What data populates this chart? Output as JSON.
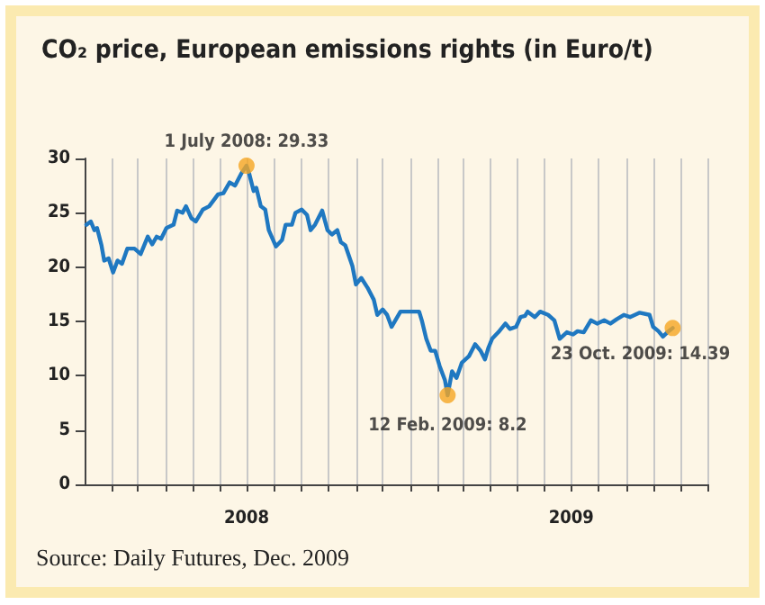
{
  "chart_data": {
    "type": "line",
    "title": "CO₂ price, European emissions rights (in Euro/t)",
    "series": [
      {
        "color": "#1f78c1",
        "x": [
          "2008-01-03",
          "2008-01-08",
          "2008-01-12",
          "2008-01-15",
          "2008-01-20",
          "2008-01-23",
          "2008-01-28",
          "2008-02-02",
          "2008-02-07",
          "2008-02-12",
          "2008-02-18",
          "2008-02-26",
          "2008-03-04",
          "2008-03-12",
          "2008-03-17",
          "2008-03-22",
          "2008-03-27",
          "2008-04-02",
          "2008-04-10",
          "2008-04-14",
          "2008-04-20",
          "2008-04-24",
          "2008-04-30",
          "2008-05-05",
          "2008-05-13",
          "2008-05-20",
          "2008-05-30",
          "2008-06-05",
          "2008-06-12",
          "2008-06-18",
          "2008-06-25",
          "2008-07-01",
          "2008-07-04",
          "2008-07-09",
          "2008-07-12",
          "2008-07-17",
          "2008-07-22",
          "2008-07-26",
          "2008-08-03",
          "2008-08-10",
          "2008-08-14",
          "2008-08-21",
          "2008-08-25",
          "2008-09-01",
          "2008-09-07",
          "2008-09-11",
          "2008-09-16",
          "2008-09-24",
          "2008-09-30",
          "2008-10-05",
          "2008-10-11",
          "2008-10-15",
          "2008-10-20",
          "2008-10-28",
          "2008-11-01",
          "2008-11-07",
          "2008-11-14",
          "2008-11-21",
          "2008-11-25",
          "2008-12-01",
          "2008-12-06",
          "2008-12-11",
          "2008-12-21",
          "2009-01-01",
          "2009-01-11",
          "2009-01-14",
          "2009-01-19",
          "2009-01-24",
          "2009-01-29",
          "2009-02-03",
          "2009-02-09",
          "2009-02-12",
          "2009-02-17",
          "2009-02-22",
          "2009-02-28",
          "2009-03-08",
          "2009-03-15",
          "2009-03-21",
          "2009-03-26",
          "2009-03-30",
          "2009-04-03",
          "2009-04-10",
          "2009-04-18",
          "2009-04-23",
          "2009-04-30",
          "2009-05-05",
          "2009-05-10",
          "2009-05-13",
          "2009-05-21",
          "2009-05-27",
          "2009-06-05",
          "2009-06-12",
          "2009-06-18",
          "2009-06-26",
          "2009-07-03",
          "2009-07-08",
          "2009-07-15",
          "2009-07-23",
          "2009-07-30",
          "2009-08-07",
          "2009-08-14",
          "2009-08-21",
          "2009-08-29",
          "2009-09-05",
          "2009-09-16",
          "2009-09-27",
          "2009-10-01",
          "2009-10-07",
          "2009-10-12",
          "2009-10-17",
          "2009-10-23"
        ],
        "values": [
          23.9,
          24.2,
          23.4,
          23.6,
          22.0,
          20.6,
          20.8,
          19.5,
          20.6,
          20.3,
          21.7,
          21.7,
          21.2,
          22.8,
          22.1,
          22.8,
          22.6,
          23.6,
          23.9,
          25.2,
          25.0,
          25.6,
          24.5,
          24.2,
          25.3,
          25.6,
          26.7,
          26.8,
          27.8,
          27.5,
          28.6,
          29.33,
          28.6,
          27.0,
          27.3,
          25.6,
          25.3,
          23.4,
          21.9,
          22.5,
          23.9,
          23.9,
          25.0,
          25.3,
          24.8,
          23.4,
          23.9,
          25.2,
          23.4,
          23.0,
          23.4,
          22.3,
          22.0,
          20.1,
          18.4,
          19.0,
          18.1,
          17.0,
          15.6,
          16.1,
          15.6,
          14.5,
          15.9,
          15.9,
          15.9,
          15.1,
          13.4,
          12.3,
          12.3,
          10.9,
          9.6,
          8.2,
          10.4,
          9.8,
          11.2,
          11.8,
          12.9,
          12.3,
          11.5,
          12.6,
          13.4,
          14.0,
          14.8,
          14.3,
          14.5,
          15.4,
          15.5,
          15.9,
          15.4,
          15.9,
          15.6,
          15.1,
          13.4,
          14.0,
          13.8,
          14.1,
          14.0,
          15.1,
          14.8,
          15.1,
          14.8,
          15.2,
          15.6,
          15.4,
          15.8,
          15.6,
          14.5,
          14.1,
          13.6,
          14.0,
          14.39
        ]
      },
      {
        "type": "scatter",
        "color": "#f5a623",
        "marker": "circle",
        "x": [
          "2008-07-01",
          "2009-02-12",
          "2009-10-23"
        ],
        "values": [
          29.33,
          8.2,
          14.39
        ]
      }
    ],
    "marker": "none",
    "line_style": "solid",
    "xlim": [
      "2008-01-01",
      "2009-12-01"
    ],
    "xticks": [
      {
        "value": "2008-02-01",
        "label": null
      },
      {
        "value": "2008-03-01",
        "label": null
      },
      {
        "value": "2008-04-01",
        "label": null
      },
      {
        "value": "2008-05-01",
        "label": null
      },
      {
        "value": "2008-06-01",
        "label": null
      },
      {
        "value": "2008-07-01",
        "label": "2008"
      },
      {
        "value": "2008-08-01",
        "label": null
      },
      {
        "value": "2008-09-01",
        "label": null
      },
      {
        "value": "2008-10-01",
        "label": null
      },
      {
        "value": "2008-11-01",
        "label": null
      },
      {
        "value": "2008-12-01",
        "label": null
      },
      {
        "value": "2009-01-01",
        "label": null
      },
      {
        "value": "2009-02-01",
        "label": null
      },
      {
        "value": "2009-03-01",
        "label": null
      },
      {
        "value": "2009-04-01",
        "label": null
      },
      {
        "value": "2009-05-01",
        "label": null
      },
      {
        "value": "2009-06-01",
        "label": null
      },
      {
        "value": "2009-07-01",
        "label": "2009"
      },
      {
        "value": "2009-08-01",
        "label": null
      },
      {
        "value": "2009-09-01",
        "label": null
      },
      {
        "value": "2009-10-01",
        "label": null
      },
      {
        "value": "2009-11-01",
        "label": null
      },
      {
        "value": "2009-12-01",
        "label": null
      }
    ],
    "ylim": [
      0,
      30
    ],
    "yticks": [
      0,
      5,
      10,
      15,
      20,
      25,
      30
    ],
    "grid": "x",
    "annotations": [
      {
        "text": "1 July 2008: 29.33",
        "x": "2008-07-01",
        "y": 29.33
      },
      {
        "text": "12 Feb. 2009: 8.2",
        "x": "2009-02-12",
        "y": 8.2
      },
      {
        "text": "23 Oct. 2009: 14.39",
        "x": "2009-10-23",
        "y": 14.39
      },
      "Source: Daily Futures, Dec. 2009"
    ]
  }
}
